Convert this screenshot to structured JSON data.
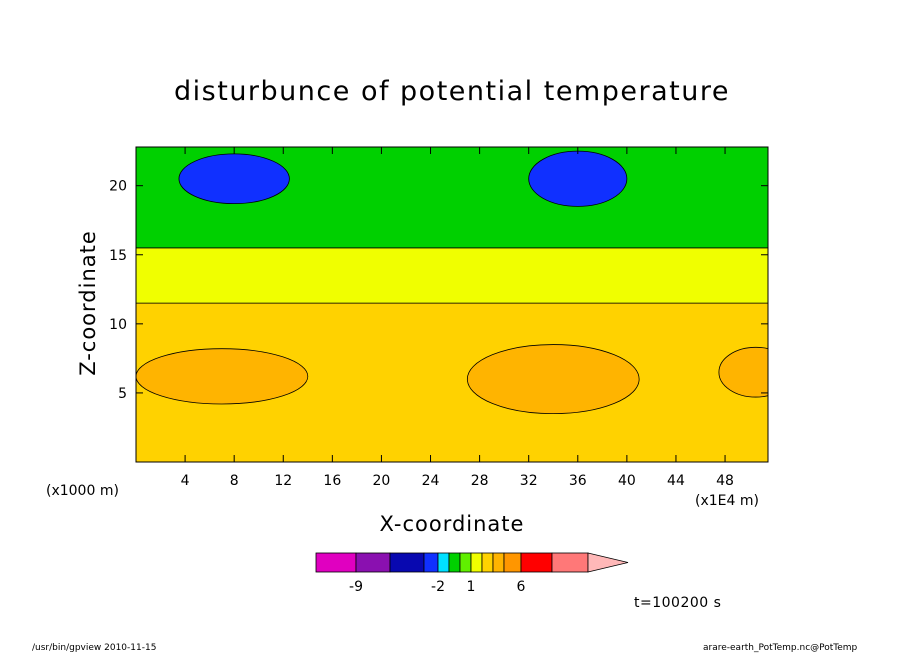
{
  "chart_data": {
    "type": "heatmap",
    "title": "disturbunce of potential temperature",
    "xlabel": "X-coordinate",
    "ylabel": "Z-coordinate",
    "x_unit": "(x1E4 m)",
    "y_unit": "(x1000 m)",
    "xlim": [
      0,
      51.5
    ],
    "ylim": [
      0,
      22.8
    ],
    "x_ticks": [
      4,
      8,
      12,
      16,
      20,
      24,
      28,
      32,
      36,
      40,
      44,
      48
    ],
    "y_ticks": [
      5,
      10,
      15,
      20
    ],
    "time_label": "t=100200 s",
    "colorbar": {
      "levels": [
        -12,
        -9,
        -6,
        -3,
        -2,
        -1,
        0,
        1,
        2,
        3,
        4,
        6,
        8,
        10
      ],
      "colors": [
        "#e000c0",
        "#8a10b0",
        "#0808b0",
        "#1030ff",
        "#00e0ff",
        "#00d000",
        "#60f000",
        "#f0ff00",
        "#ffd200",
        "#ffb400",
        "#ff9600",
        "#ff0000",
        "#ff7878",
        "#ffb8b8"
      ],
      "labels": [
        "-9",
        "-2",
        "1",
        "6"
      ],
      "label_levels": [
        -9,
        -2,
        1,
        6
      ]
    },
    "regions": [
      {
        "name": "lower-warm-layer",
        "level": 2,
        "x": [
          0,
          51.5
        ],
        "z": [
          0,
          11.5
        ]
      },
      {
        "name": "middle-yellow-layer",
        "level": 1,
        "x": [
          0,
          51.5
        ],
        "z": [
          11.5,
          15.5
        ]
      },
      {
        "name": "upper-green-layer",
        "level": -1,
        "x": [
          0,
          51.5
        ],
        "z": [
          15.5,
          22.8
        ]
      },
      {
        "name": "orange-blob-left",
        "level": 3,
        "x_center": 7,
        "z_center": 6.2,
        "x_half": 7,
        "z_half": 2
      },
      {
        "name": "orange-blob-center",
        "level": 3,
        "x_center": 34,
        "z_center": 6,
        "x_half": 7,
        "z_half": 2.5
      },
      {
        "name": "orange-blob-right",
        "level": 3,
        "x_center": 50.5,
        "z_center": 6.5,
        "x_half": 3,
        "z_half": 1.8
      },
      {
        "name": "blue-cell-left",
        "level": -3,
        "x_center": 8,
        "z_center": 20.5,
        "x_half": 4.5,
        "z_half": 1.8
      },
      {
        "name": "blue-cell-center",
        "level": -3,
        "x_center": 36,
        "z_center": 20.5,
        "x_half": 4,
        "z_half": 2
      }
    ]
  },
  "footer": {
    "left": "/usr/bin/gpview   2010-11-15",
    "right": "arare-earth_PotTemp.nc@PotTemp"
  }
}
